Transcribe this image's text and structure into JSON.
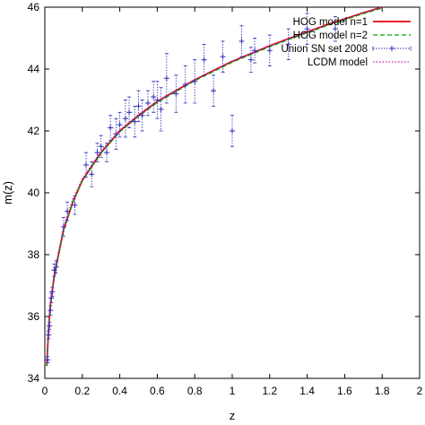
{
  "chart_data": {
    "type": "scatter",
    "xlabel": "z",
    "ylabel": "m(z)",
    "xlim": [
      0,
      2
    ],
    "ylim": [
      34,
      46
    ],
    "x_ticks": [
      "0",
      "0.2",
      "0.4",
      "0.6",
      "0.8",
      "1",
      "1.2",
      "1.4",
      "1.6",
      "1.8",
      "2"
    ],
    "y_ticks": [
      "34",
      "36",
      "38",
      "40",
      "42",
      "44",
      "46"
    ],
    "grid": false,
    "legend_position": "top-right",
    "series": [
      {
        "name": "HOG model n=1",
        "kind": "line",
        "color": "#e8000b",
        "x": [
          0.01,
          0.02,
          0.03,
          0.05,
          0.07,
          0.1,
          0.15,
          0.2,
          0.3,
          0.4,
          0.5,
          0.6,
          0.7,
          0.8,
          0.9,
          1.0,
          1.1,
          1.2,
          1.3,
          1.4,
          1.5,
          1.6,
          1.7,
          1.8
        ],
        "y": [
          34.4,
          35.6,
          36.4,
          37.3,
          37.9,
          38.8,
          39.7,
          40.4,
          41.3,
          42.0,
          42.5,
          42.95,
          43.3,
          43.65,
          43.95,
          44.25,
          44.5,
          44.75,
          44.98,
          45.2,
          45.42,
          45.62,
          45.82,
          46.0
        ]
      },
      {
        "name": "HOG model n=2",
        "kind": "line",
        "dash": "5,3",
        "color": "#00a000",
        "x": [
          0.01,
          0.02,
          0.03,
          0.05,
          0.07,
          0.1,
          0.15,
          0.2,
          0.3,
          0.4,
          0.5,
          0.6,
          0.7,
          0.8,
          0.9,
          1.0,
          1.1,
          1.2,
          1.3,
          1.4,
          1.5,
          1.6,
          1.7,
          1.8
        ],
        "y": [
          34.4,
          35.6,
          36.4,
          37.3,
          37.9,
          38.8,
          39.7,
          40.38,
          41.28,
          41.97,
          42.47,
          42.92,
          43.27,
          43.62,
          43.92,
          44.22,
          44.47,
          44.72,
          44.95,
          45.17,
          45.39,
          45.59,
          45.79,
          45.97
        ]
      },
      {
        "name": "Union SN set 2008",
        "kind": "errorbar",
        "color": "#2a2ab8",
        "x": [
          0.015,
          0.02,
          0.025,
          0.03,
          0.035,
          0.04,
          0.05,
          0.06,
          0.1,
          0.12,
          0.16,
          0.22,
          0.25,
          0.28,
          0.3,
          0.33,
          0.35,
          0.38,
          0.4,
          0.43,
          0.45,
          0.48,
          0.5,
          0.52,
          0.55,
          0.58,
          0.6,
          0.62,
          0.65,
          0.7,
          0.75,
          0.8,
          0.85,
          0.9,
          0.95,
          1.0,
          1.05,
          1.1,
          1.12,
          1.2,
          1.3,
          1.4,
          1.55
        ],
        "y": [
          34.6,
          35.4,
          35.7,
          36.2,
          36.6,
          36.8,
          37.5,
          37.6,
          38.9,
          39.4,
          39.6,
          40.9,
          40.6,
          41.3,
          41.5,
          41.3,
          42.1,
          41.9,
          42.2,
          42.4,
          42.6,
          42.3,
          42.8,
          42.5,
          42.9,
          43.1,
          43.0,
          42.7,
          43.7,
          43.2,
          43.5,
          43.6,
          44.3,
          43.3,
          44.4,
          42.0,
          44.9,
          44.3,
          44.6,
          44.6,
          44.8,
          45.3,
          45.3
        ],
        "yerr": [
          0.1,
          0.12,
          0.12,
          0.15,
          0.15,
          0.15,
          0.2,
          0.2,
          0.3,
          0.3,
          0.3,
          0.4,
          0.4,
          0.3,
          0.35,
          0.3,
          0.4,
          0.5,
          0.4,
          0.6,
          0.5,
          0.5,
          0.5,
          0.5,
          0.4,
          0.5,
          0.6,
          0.7,
          0.8,
          0.6,
          0.6,
          0.7,
          0.5,
          0.5,
          0.5,
          0.5,
          0.5,
          0.4,
          0.4,
          0.5,
          0.5,
          0.5,
          0.4
        ]
      },
      {
        "name": "LCDM model",
        "kind": "line",
        "dash": "1.5,2",
        "color": "#c020c0",
        "x": [
          0.01,
          0.02,
          0.03,
          0.05,
          0.07,
          0.1,
          0.15,
          0.2,
          0.3,
          0.4,
          0.5,
          0.6,
          0.7,
          0.8,
          0.9,
          1.0,
          1.1,
          1.2,
          1.3,
          1.4,
          1.5,
          1.6,
          1.7,
          1.8
        ],
        "y": [
          34.5,
          35.7,
          36.5,
          37.4,
          38.0,
          38.9,
          39.8,
          40.45,
          41.35,
          42.03,
          42.53,
          42.97,
          43.32,
          43.66,
          43.96,
          44.26,
          44.51,
          44.76,
          44.99,
          45.21,
          45.43,
          45.63,
          45.83,
          46.01
        ]
      }
    ]
  }
}
